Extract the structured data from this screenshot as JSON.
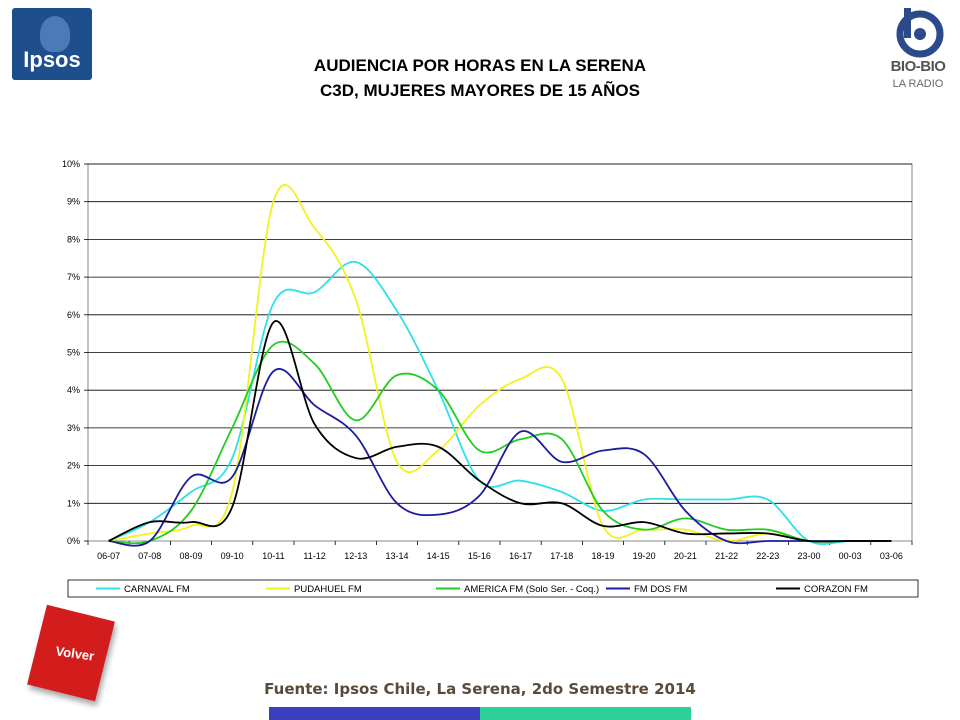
{
  "header": {
    "title_line1": "AUDIENCIA POR HORAS EN LA SERENA",
    "title_line2": "C3D, MUJERES MAYORES DE 15 AÑOS",
    "logo_left_text": "Ipsos",
    "logo_right_text": "BIO-BIO",
    "logo_right_sub": "LA RADIO"
  },
  "footer": {
    "source": "Fuente: Ipsos Chile, La Serena, 2do Semestre 2014",
    "back_button_label": "Volver",
    "colors": {
      "bar_left": "#3a3fbf",
      "bar_right": "#2cd09a"
    }
  },
  "chart_data": {
    "type": "line",
    "categories": [
      "06-07",
      "07-08",
      "08-09",
      "09-10",
      "10-11",
      "11-12",
      "12-13",
      "13-14",
      "14-15",
      "15-16",
      "16-17",
      "17-18",
      "18-19",
      "19-20",
      "20-21",
      "21-22",
      "22-23",
      "23-00",
      "00-03",
      "03-06"
    ],
    "y_ticks": [
      "0%",
      "1%",
      "2%",
      "3%",
      "4%",
      "5%",
      "6%",
      "7%",
      "8%",
      "9%",
      "10%"
    ],
    "ylim": [
      0,
      10
    ],
    "grid": true,
    "legend_position": "bottom",
    "series": [
      {
        "name": "CARNAVAL FM",
        "color": "#2ee0e8",
        "values": [
          0,
          0.5,
          1.3,
          2.2,
          6.3,
          6.6,
          7.4,
          6.1,
          4.0,
          1.6,
          1.6,
          1.3,
          0.8,
          1.1,
          1.1,
          1.1,
          1.1,
          0,
          0,
          0
        ]
      },
      {
        "name": "PUDAHUEL FM",
        "color": "#f2f21e",
        "values": [
          0,
          0.2,
          0.4,
          1.3,
          9.0,
          8.3,
          6.4,
          2.1,
          2.4,
          3.6,
          4.3,
          4.3,
          0.4,
          0.3,
          0.3,
          0,
          0.2,
          0,
          0,
          0
        ]
      },
      {
        "name": "AMERICA FM  (Solo Ser. - Coq.)",
        "color": "#22cc22",
        "values": [
          0,
          0,
          0.8,
          3.0,
          5.2,
          4.7,
          3.2,
          4.4,
          4.0,
          2.4,
          2.7,
          2.7,
          0.8,
          0.3,
          0.6,
          0.3,
          0.3,
          0,
          0,
          0
        ]
      },
      {
        "name": "FM DOS FM",
        "color": "#1c1c9c",
        "values": [
          0,
          0,
          1.7,
          1.7,
          4.5,
          3.6,
          2.8,
          1.0,
          0.7,
          1.2,
          2.9,
          2.1,
          2.4,
          2.3,
          0.8,
          0,
          0,
          0,
          0,
          0
        ]
      },
      {
        "name": "CORAZON FM",
        "color": "#000000",
        "values": [
          0,
          0.5,
          0.5,
          0.9,
          5.8,
          3.1,
          2.2,
          2.5,
          2.5,
          1.6,
          1.0,
          1.0,
          0.4,
          0.5,
          0.2,
          0.2,
          0.2,
          0,
          0,
          0
        ]
      }
    ]
  }
}
